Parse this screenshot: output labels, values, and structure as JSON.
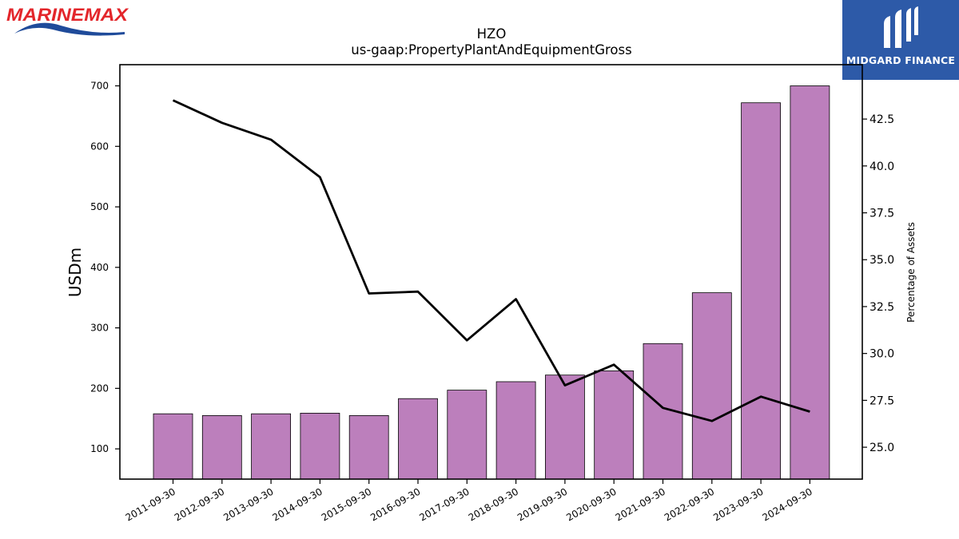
{
  "branding": {
    "left_logo": "MARINEMAX",
    "right_logo": "MIDGARD FINANCE"
  },
  "colors": {
    "bar_fill": "#bc7fbc",
    "bar_stroke": "#000000",
    "line": "#000000",
    "brand_blue": "#2d5aa8",
    "brand_red": "#e3262b"
  },
  "chart_data": {
    "type": "bar",
    "title": "HZO",
    "subtitle": "us-gaap:PropertyPlantAndEquipmentGross",
    "ylabel": "USDm",
    "y2label": "Percentage of Assets",
    "categories": [
      "2011-09-30",
      "2012-09-30",
      "2013-09-30",
      "2014-09-30",
      "2015-09-30",
      "2016-09-30",
      "2017-09-30",
      "2018-09-30",
      "2019-09-30",
      "2020-09-30",
      "2021-09-30",
      "2022-09-30",
      "2023-09-30",
      "2024-09-30"
    ],
    "series": [
      {
        "type": "bar",
        "axis": "left",
        "values": [
          158,
          155,
          158,
          159,
          155,
          183,
          197,
          211,
          222,
          229,
          274,
          358,
          672,
          700
        ]
      },
      {
        "type": "line",
        "axis": "right",
        "values": [
          43.5,
          42.3,
          41.4,
          39.4,
          33.2,
          33.3,
          30.7,
          32.9,
          28.3,
          29.4,
          27.1,
          26.4,
          27.7,
          26.9
        ]
      }
    ],
    "ylim": [
      50,
      735
    ],
    "y2lim": [
      23.3,
      45.4
    ],
    "yticks": [
      100,
      200,
      300,
      400,
      500,
      600,
      700
    ],
    "y2ticks": [
      25.0,
      27.5,
      30.0,
      32.5,
      35.0,
      37.5,
      40.0,
      42.5
    ],
    "grid": false
  }
}
